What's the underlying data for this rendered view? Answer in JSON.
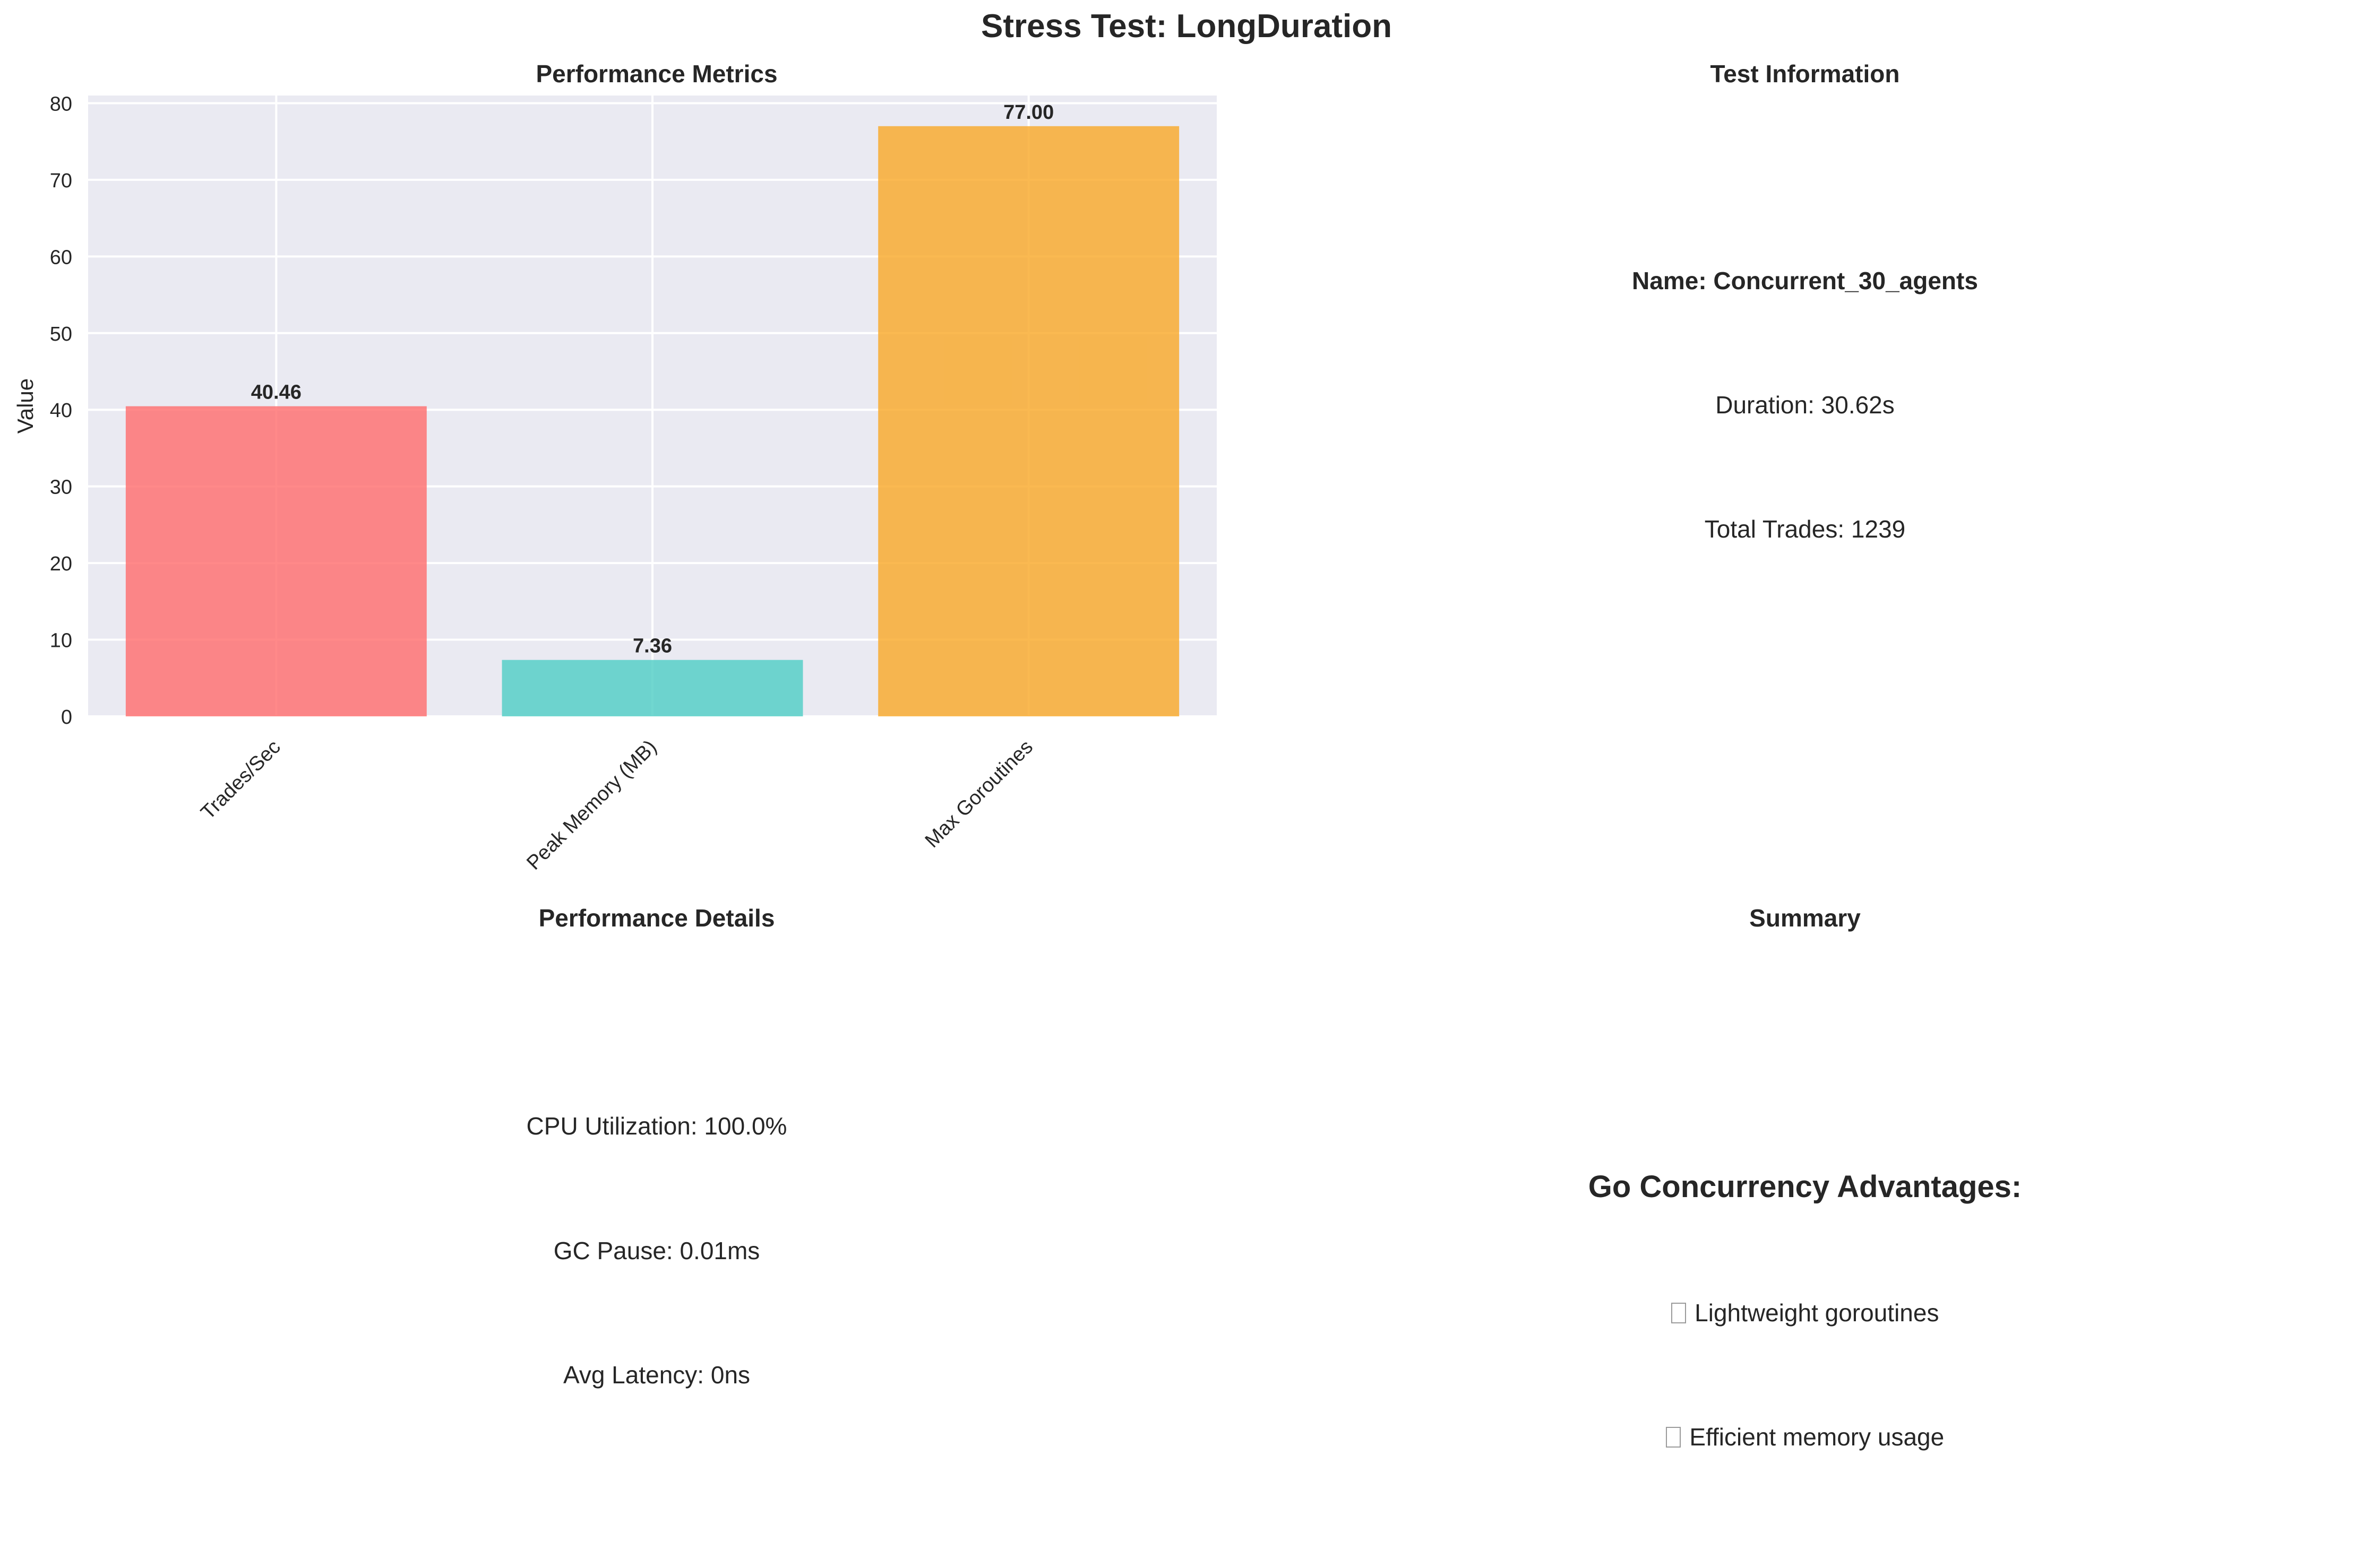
{
  "figure": {
    "suptitle": "Stress Test: LongDuration"
  },
  "chart_data": {
    "type": "bar",
    "title": "Performance Metrics",
    "xlabel": "",
    "ylabel": "Value",
    "categories": [
      "Trades/Sec",
      "Peak Memory (MB)",
      "Max Goroutines"
    ],
    "values": [
      40.46,
      7.36,
      77.0
    ],
    "value_labels": [
      "40.46",
      "7.36",
      "77.00"
    ],
    "colors": [
      "#ff6b6b",
      "#4ecdc4",
      "#f9a825"
    ],
    "ylim": [
      0,
      81
    ],
    "yticks": [
      0,
      10,
      20,
      30,
      40,
      50,
      60,
      70,
      80
    ],
    "grid": true,
    "background": "#eaeaf2"
  },
  "test_info": {
    "title": "Test Information",
    "name": "Name: Concurrent_30_agents",
    "duration": "Duration: 30.62s",
    "total_trades": "Total Trades: 1239"
  },
  "performance_details": {
    "title": "Performance Details",
    "cpu": "CPU Utilization: 100.0%",
    "gc_pause": "GC Pause: 0.01ms",
    "avg_latency": "Avg Latency: 0ns"
  },
  "summary": {
    "title": "Summary",
    "heading": "Go Concurrency Advantages:",
    "items": [
      {
        "icon": "missing-glyph-icon",
        "text": "Lightweight goroutines"
      },
      {
        "icon": "missing-glyph-icon",
        "text": "Efficient memory usage"
      }
    ]
  }
}
